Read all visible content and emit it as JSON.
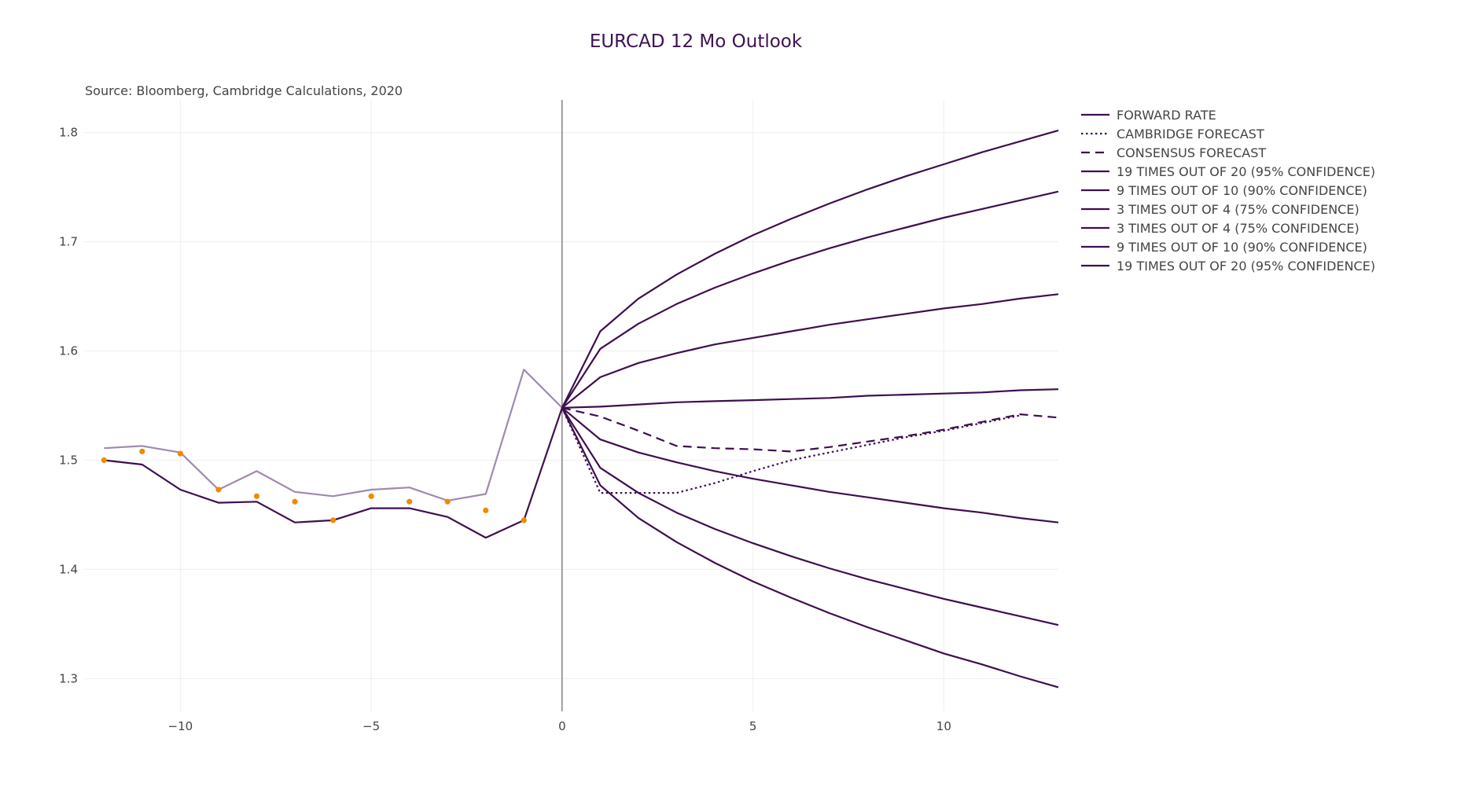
{
  "chart_data": {
    "type": "line",
    "title": "EURCAD 12 Mo Outlook",
    "subtitle": "Source: Bloomberg, Cambridge Calculations, 2020",
    "xlabel": "",
    "ylabel": "",
    "xlim": [
      -12.5,
      13
    ],
    "ylim": [
      1.27,
      1.83
    ],
    "x_ticks": [
      -10,
      -5,
      0,
      5,
      10
    ],
    "x_tick_labels": [
      "−10",
      "−5",
      "0",
      "5",
      "10"
    ],
    "y_ticks": [
      1.3,
      1.4,
      1.5,
      1.6,
      1.7,
      1.8
    ],
    "y_tick_labels": [
      "1.3",
      "1.4",
      "1.5",
      "1.6",
      "1.7",
      "1.8"
    ],
    "grid": true,
    "legend_position": "right",
    "vertical_line_x": 0,
    "colors": {
      "main": "#3d0f4f",
      "historical_light": "#a08aad",
      "markers": "#f08a00",
      "grid": "#eeeeee",
      "zero_line": "#444444"
    },
    "history": {
      "x": [
        -12,
        -11,
        -10,
        -9,
        -8,
        -7,
        -6,
        -5,
        -4,
        -3,
        -2,
        -1,
        0
      ],
      "dark_line": [
        1.5,
        1.496,
        1.473,
        1.461,
        1.462,
        1.443,
        1.445,
        1.456,
        1.456,
        1.448,
        1.429,
        1.445,
        1.548
      ],
      "light_line": [
        1.511,
        1.513,
        1.507,
        1.473,
        1.49,
        1.471,
        1.467,
        1.473,
        1.475,
        1.463,
        1.469,
        1.583,
        1.548
      ],
      "markers": [
        1.5,
        1.508,
        1.506,
        1.473,
        1.467,
        1.462,
        1.445,
        1.467,
        1.462,
        1.462,
        1.454,
        1.445
      ]
    },
    "series": [
      {
        "name": "FORWARD RATE",
        "dash": "solid",
        "x": [
          0,
          1,
          2,
          3,
          4,
          5,
          6,
          7,
          8,
          9,
          10,
          11,
          12,
          13
        ],
        "values": [
          1.548,
          1.549,
          1.551,
          1.553,
          1.554,
          1.555,
          1.556,
          1.557,
          1.559,
          1.56,
          1.561,
          1.562,
          1.564,
          1.565
        ]
      },
      {
        "name": "CAMBRIDGE FORECAST",
        "dash": "dot",
        "x": [
          0,
          1,
          2,
          3,
          4,
          5,
          6,
          7,
          8,
          9,
          10,
          11,
          12
        ],
        "values": [
          1.548,
          1.47,
          1.47,
          1.47,
          1.479,
          1.49,
          1.5,
          1.507,
          1.514,
          1.521,
          1.527,
          1.534,
          1.541
        ]
      },
      {
        "name": "CONSENSUS FORECAST",
        "dash": "dash",
        "x": [
          0,
          1,
          2,
          3,
          4,
          5,
          6,
          7,
          8,
          9,
          10,
          11,
          12,
          13
        ],
        "values": [
          1.548,
          1.54,
          1.527,
          1.513,
          1.511,
          1.51,
          1.508,
          1.512,
          1.517,
          1.522,
          1.528,
          1.535,
          1.542,
          1.539
        ]
      },
      {
        "name": "19 TIMES OUT OF 20 (95% CONFIDENCE)",
        "dash": "solid",
        "x": [
          0,
          1,
          2,
          3,
          4,
          5,
          6,
          7,
          8,
          9,
          10,
          11,
          12,
          13
        ],
        "values": [
          1.548,
          1.618,
          1.648,
          1.67,
          1.689,
          1.706,
          1.721,
          1.735,
          1.748,
          1.76,
          1.771,
          1.782,
          1.792,
          1.802
        ]
      },
      {
        "name": "9 TIMES OUT OF 10 (90% CONFIDENCE)",
        "dash": "solid",
        "x": [
          0,
          1,
          2,
          3,
          4,
          5,
          6,
          7,
          8,
          9,
          10,
          11,
          12,
          13
        ],
        "values": [
          1.548,
          1.602,
          1.625,
          1.643,
          1.658,
          1.671,
          1.683,
          1.694,
          1.704,
          1.713,
          1.722,
          1.73,
          1.738,
          1.746
        ]
      },
      {
        "name": "3 TIMES OUT OF 4 (75% CONFIDENCE)",
        "dash": "solid",
        "x": [
          0,
          1,
          2,
          3,
          4,
          5,
          6,
          7,
          8,
          9,
          10,
          11,
          12,
          13
        ],
        "values": [
          1.548,
          1.576,
          1.589,
          1.598,
          1.606,
          1.612,
          1.618,
          1.624,
          1.629,
          1.634,
          1.639,
          1.643,
          1.648,
          1.652
        ]
      },
      {
        "name": "3 TIMES OUT OF 4 (75% CONFIDENCE)",
        "dash": "solid",
        "x": [
          0,
          1,
          2,
          3,
          4,
          5,
          6,
          7,
          8,
          9,
          10,
          11,
          12,
          13
        ],
        "values": [
          1.548,
          1.519,
          1.507,
          1.498,
          1.49,
          1.483,
          1.477,
          1.471,
          1.466,
          1.461,
          1.456,
          1.452,
          1.447,
          1.443
        ]
      },
      {
        "name": "9 TIMES OUT OF 10 (90% CONFIDENCE)",
        "dash": "solid",
        "x": [
          0,
          1,
          2,
          3,
          4,
          5,
          6,
          7,
          8,
          9,
          10,
          11,
          12,
          13
        ],
        "values": [
          1.548,
          1.493,
          1.47,
          1.452,
          1.437,
          1.424,
          1.412,
          1.401,
          1.391,
          1.382,
          1.373,
          1.365,
          1.357,
          1.349
        ]
      },
      {
        "name": "19 TIMES OUT OF 20 (95% CONFIDENCE)",
        "dash": "solid",
        "x": [
          0,
          1,
          2,
          3,
          4,
          5,
          6,
          7,
          8,
          9,
          10,
          11,
          12,
          13
        ],
        "values": [
          1.548,
          1.477,
          1.447,
          1.425,
          1.406,
          1.389,
          1.374,
          1.36,
          1.347,
          1.335,
          1.323,
          1.313,
          1.302,
          1.292
        ]
      }
    ]
  }
}
